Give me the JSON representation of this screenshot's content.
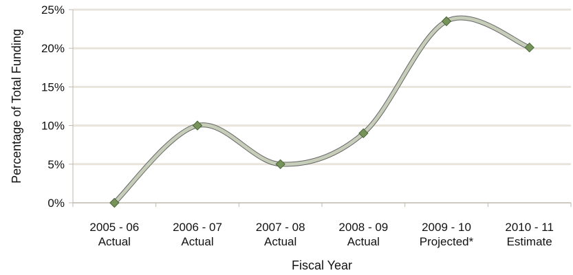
{
  "chart_data": {
    "type": "line",
    "smooth": true,
    "categories": [
      [
        "2005 - 06",
        "Actual"
      ],
      [
        "2006 - 07",
        "Actual"
      ],
      [
        "2007 - 08",
        "Actual"
      ],
      [
        "2008 - 09",
        "Actual"
      ],
      [
        "2009 - 10",
        "Projected*"
      ],
      [
        "2010 - 11",
        "Estimate"
      ]
    ],
    "values": [
      0,
      10,
      5,
      9,
      23.5,
      20.1
    ],
    "xlabel": "Fiscal Year",
    "ylabel": "Percentage of Total Funding",
    "ylim": [
      0,
      25
    ],
    "yticks": [
      {
        "value": 0,
        "label": "0%"
      },
      {
        "value": 5,
        "label": "5%"
      },
      {
        "value": 10,
        "label": "10%"
      },
      {
        "value": 15,
        "label": "15%"
      },
      {
        "value": 20,
        "label": "20%"
      },
      {
        "value": 25,
        "label": "25%"
      }
    ],
    "grid": true,
    "legend": "none",
    "colors": {
      "grid": "#e8e4dc",
      "axis": "#bdb8ae",
      "line_fill": "#c6cdb9",
      "line_outline": "#666666",
      "marker_fill": "#76935a",
      "marker_stroke": "#4a6538"
    }
  }
}
